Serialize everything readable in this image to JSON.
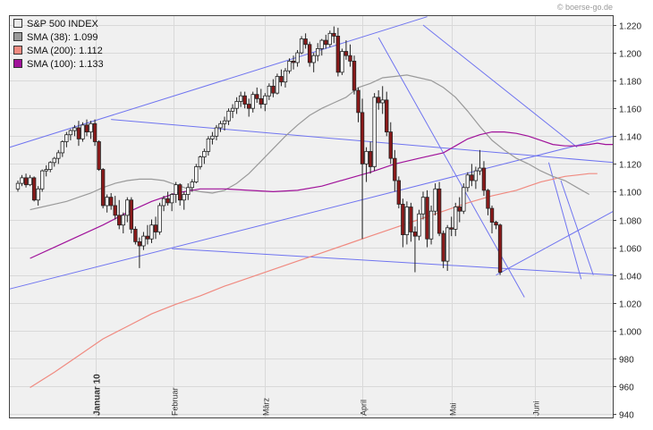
{
  "watermark": "© boerse-go.de",
  "legend": [
    {
      "label": "S&P 500 INDEX",
      "color": "#e8e8e8"
    },
    {
      "label": "SMA (38): 1.099",
      "color": "#9a9a9a"
    },
    {
      "label": "SMA (200): 1.112",
      "color": "#f08a80"
    },
    {
      "label": "SMA (100): 1.133",
      "color": "#a0129a"
    }
  ],
  "chart_data": {
    "type": "candlestick",
    "ylim": [
      940,
      1230
    ],
    "y_ticks": [
      940,
      960,
      980,
      1000,
      1020,
      1040,
      1060,
      1080,
      1100,
      1120,
      1140,
      1160,
      1180,
      1200,
      1220
    ],
    "y_tick_labels": [
      "940",
      "960",
      "980",
      "1.000",
      "1.020",
      "1.040",
      "1.060",
      "1.080",
      "1.100",
      "1.120",
      "1.140",
      "1.160",
      "1.180",
      "1.200",
      "1.220"
    ],
    "month_labels": [
      {
        "label": "Januar 10",
        "index": 19.2,
        "bold": true
      },
      {
        "label": "Februar",
        "index": 38.5
      },
      {
        "label": "März",
        "index": 61
      },
      {
        "label": "April",
        "index": 85
      },
      {
        "label": "Mai",
        "index": 107
      },
      {
        "label": "Juni",
        "index": 127.5
      }
    ],
    "colors": {
      "up": "#ffffff",
      "down": "#8b1a1a",
      "outline": "#222222",
      "trendline": "#6f74f0",
      "grid": "#d9d9d9",
      "plot_bg": "#f0f0f0"
    },
    "ohlc": [
      [
        1102,
        1108,
        1100,
        1106
      ],
      [
        1106,
        1112,
        1104,
        1110
      ],
      [
        1110,
        1113,
        1103,
        1105
      ],
      [
        1105,
        1112,
        1104,
        1110
      ],
      [
        1110,
        1111,
        1093,
        1094
      ],
      [
        1094,
        1104,
        1090,
        1102
      ],
      [
        1102,
        1116,
        1100,
        1115
      ],
      [
        1115,
        1119,
        1111,
        1116
      ],
      [
        1116,
        1122,
        1114,
        1121
      ],
      [
        1121,
        1125,
        1118,
        1124
      ],
      [
        1124,
        1130,
        1120,
        1128
      ],
      [
        1128,
        1137,
        1125,
        1136
      ],
      [
        1136,
        1143,
        1132,
        1141
      ],
      [
        1141,
        1145,
        1137,
        1144
      ],
      [
        1144,
        1148,
        1140,
        1146
      ],
      [
        1146,
        1151,
        1133,
        1138
      ],
      [
        1138,
        1150,
        1136,
        1148
      ],
      [
        1148,
        1152,
        1140,
        1143
      ],
      [
        1143,
        1151,
        1138,
        1149
      ],
      [
        1149,
        1152,
        1133,
        1136
      ],
      [
        1136,
        1137,
        1115,
        1116
      ],
      [
        1116,
        1117,
        1088,
        1090
      ],
      [
        1090,
        1098,
        1085,
        1096
      ],
      [
        1096,
        1099,
        1087,
        1090
      ],
      [
        1090,
        1097,
        1080,
        1083
      ],
      [
        1083,
        1094,
        1073,
        1076
      ],
      [
        1076,
        1085,
        1070,
        1083
      ],
      [
        1083,
        1096,
        1078,
        1094
      ],
      [
        1094,
        1096,
        1070,
        1073
      ],
      [
        1073,
        1075,
        1062,
        1064
      ],
      [
        1064,
        1067,
        1045,
        1061
      ],
      [
        1061,
        1071,
        1058,
        1068
      ],
      [
        1068,
        1076,
        1062,
        1066
      ],
      [
        1066,
        1080,
        1063,
        1076
      ],
      [
        1076,
        1082,
        1066,
        1071
      ],
      [
        1071,
        1092,
        1069,
        1090
      ],
      [
        1090,
        1097,
        1086,
        1095
      ],
      [
        1095,
        1100,
        1090,
        1092
      ],
      [
        1092,
        1099,
        1086,
        1098
      ],
      [
        1098,
        1107,
        1092,
        1105
      ],
      [
        1105,
        1106,
        1090,
        1094
      ],
      [
        1094,
        1100,
        1087,
        1098
      ],
      [
        1098,
        1106,
        1094,
        1103
      ],
      [
        1103,
        1109,
        1100,
        1107
      ],
      [
        1107,
        1120,
        1106,
        1118
      ],
      [
        1118,
        1126,
        1116,
        1125
      ],
      [
        1125,
        1131,
        1120,
        1129
      ],
      [
        1129,
        1140,
        1126,
        1138
      ],
      [
        1138,
        1143,
        1134,
        1140
      ],
      [
        1140,
        1148,
        1137,
        1146
      ],
      [
        1146,
        1151,
        1143,
        1149
      ],
      [
        1149,
        1154,
        1144,
        1151
      ],
      [
        1151,
        1160,
        1148,
        1158
      ],
      [
        1158,
        1163,
        1153,
        1160
      ],
      [
        1160,
        1168,
        1156,
        1165
      ],
      [
        1165,
        1172,
        1161,
        1169
      ],
      [
        1169,
        1172,
        1160,
        1163
      ],
      [
        1163,
        1167,
        1154,
        1160
      ],
      [
        1160,
        1172,
        1157,
        1170
      ],
      [
        1170,
        1175,
        1164,
        1167
      ],
      [
        1167,
        1174,
        1160,
        1163
      ],
      [
        1163,
        1171,
        1158,
        1169
      ],
      [
        1169,
        1178,
        1166,
        1176
      ],
      [
        1176,
        1181,
        1168,
        1171
      ],
      [
        1171,
        1185,
        1170,
        1183
      ],
      [
        1183,
        1188,
        1176,
        1179
      ],
      [
        1179,
        1189,
        1175,
        1187
      ],
      [
        1187,
        1196,
        1185,
        1194
      ],
      [
        1194,
        1198,
        1188,
        1193
      ],
      [
        1193,
        1202,
        1190,
        1200
      ],
      [
        1200,
        1212,
        1199,
        1210
      ],
      [
        1210,
        1214,
        1203,
        1206
      ],
      [
        1206,
        1208,
        1190,
        1193
      ],
      [
        1193,
        1200,
        1186,
        1198
      ],
      [
        1198,
        1207,
        1194,
        1203
      ],
      [
        1203,
        1210,
        1198,
        1209
      ],
      [
        1209,
        1213,
        1203,
        1206
      ],
      [
        1206,
        1216,
        1204,
        1214
      ],
      [
        1214,
        1219,
        1207,
        1212
      ],
      [
        1212,
        1218,
        1183,
        1186
      ],
      [
        1186,
        1203,
        1184,
        1201
      ],
      [
        1201,
        1209,
        1195,
        1198
      ],
      [
        1198,
        1206,
        1190,
        1194
      ],
      [
        1194,
        1198,
        1170,
        1173
      ],
      [
        1173,
        1175,
        1150,
        1157
      ],
      [
        1157,
        1167,
        1066,
        1120
      ],
      [
        1120,
        1132,
        1107,
        1129
      ],
      [
        1129,
        1136,
        1113,
        1118
      ],
      [
        1118,
        1171,
        1115,
        1168
      ],
      [
        1168,
        1173,
        1159,
        1164
      ],
      [
        1164,
        1176,
        1156,
        1166
      ],
      [
        1166,
        1172,
        1140,
        1143
      ],
      [
        1143,
        1150,
        1120,
        1124
      ],
      [
        1124,
        1130,
        1100,
        1108
      ],
      [
        1108,
        1111,
        1088,
        1091
      ],
      [
        1091,
        1095,
        1060,
        1069
      ],
      [
        1069,
        1093,
        1062,
        1089
      ],
      [
        1089,
        1092,
        1064,
        1071
      ],
      [
        1071,
        1075,
        1042,
        1068
      ],
      [
        1068,
        1087,
        1065,
        1084
      ],
      [
        1084,
        1100,
        1080,
        1096
      ],
      [
        1096,
        1101,
        1060,
        1066
      ],
      [
        1066,
        1090,
        1062,
        1086
      ],
      [
        1086,
        1106,
        1083,
        1102
      ],
      [
        1102,
        1107,
        1068,
        1070
      ],
      [
        1070,
        1072,
        1045,
        1050
      ],
      [
        1050,
        1076,
        1043,
        1074
      ],
      [
        1074,
        1082,
        1068,
        1073
      ],
      [
        1073,
        1092,
        1068,
        1089
      ],
      [
        1089,
        1096,
        1078,
        1086
      ],
      [
        1086,
        1106,
        1084,
        1103
      ],
      [
        1103,
        1114,
        1100,
        1112
      ],
      [
        1112,
        1120,
        1104,
        1108
      ],
      [
        1108,
        1118,
        1102,
        1115
      ],
      [
        1115,
        1130,
        1112,
        1117
      ],
      [
        1117,
        1122,
        1097,
        1101
      ],
      [
        1101,
        1102,
        1083,
        1088
      ],
      [
        1088,
        1090,
        1070,
        1078
      ],
      [
        1078,
        1079,
        1073,
        1076
      ],
      [
        1076,
        1077,
        1040,
        1042
      ]
    ],
    "sma38": [
      1087,
      1089,
      1091,
      1093,
      1096,
      1099,
      1103,
      1106,
      1108,
      1109,
      1109,
      1108,
      1105,
      1102,
      1100,
      1099,
      1101,
      1106,
      1113,
      1122,
      1131,
      1140,
      1148,
      1155,
      1160,
      1164,
      1168,
      1175,
      1178,
      1182,
      1183,
      1184,
      1182,
      1180,
      1175,
      1168,
      1158,
      1147,
      1137,
      1130,
      1124,
      1120,
      1115,
      1111,
      1108,
      1103,
      1098
    ],
    "sma38_x": [
      3,
      6,
      9,
      12,
      15,
      18,
      21,
      24,
      27,
      30,
      33,
      36,
      39,
      42,
      45,
      48,
      51,
      54,
      57,
      60,
      63,
      66,
      69,
      72,
      75,
      78,
      81,
      84,
      87,
      90,
      93,
      96,
      99,
      102,
      105,
      108,
      111,
      114,
      117,
      120,
      123,
      126,
      129,
      132,
      135,
      138,
      141
    ],
    "sma100": [
      1052,
      1060,
      1068,
      1076,
      1085,
      1093,
      1099,
      1102,
      1102,
      1101,
      1100,
      1101,
      1104,
      1109,
      1114,
      1120,
      1124,
      1128,
      1133,
      1138,
      1141,
      1143,
      1143,
      1142,
      1140,
      1137,
      1134,
      1133,
      1133,
      1134,
      1135,
      1134,
      1134
    ],
    "sma100_x": [
      3,
      9,
      15,
      21,
      27,
      33,
      39,
      45,
      51,
      57,
      63,
      69,
      75,
      81,
      87,
      93,
      99,
      105,
      108,
      111,
      114,
      117,
      120,
      123,
      126,
      129,
      132,
      135,
      138,
      141,
      143,
      145,
      147
    ],
    "sma200": [
      959,
      970,
      982,
      994,
      1003,
      1012,
      1019,
      1025,
      1032,
      1038,
      1044,
      1050,
      1056,
      1062,
      1068,
      1074,
      1080,
      1086,
      1092,
      1097,
      1101,
      1104,
      1107,
      1109,
      1111,
      1112,
      1113,
      1113
    ],
    "sma200_x": [
      3,
      9,
      15,
      21,
      27,
      33,
      39,
      45,
      51,
      57,
      63,
      69,
      75,
      81,
      87,
      93,
      99,
      105,
      111,
      117,
      123,
      126,
      129,
      132,
      135,
      138,
      141,
      143
    ]
  }
}
